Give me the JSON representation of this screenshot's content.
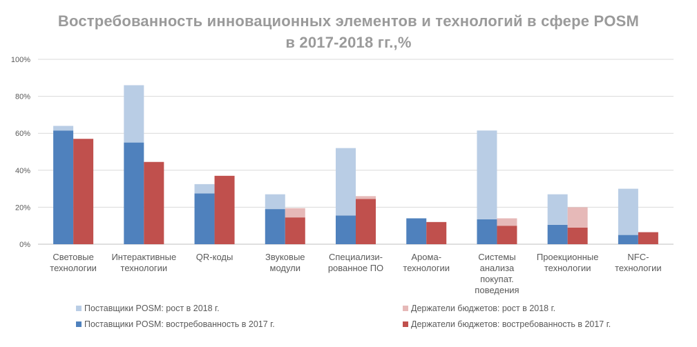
{
  "chart_data": {
    "type": "bar",
    "title_line1": "Востребованность инновационных элементов и технологий в сфере POSM",
    "title_line2": "в 2017-2018 гг.,%",
    "ylim": [
      0,
      100
    ],
    "yticks": [
      "0%",
      "20%",
      "40%",
      "60%",
      "80%",
      "100%"
    ],
    "ytick_values": [
      0,
      20,
      40,
      60,
      80,
      100
    ],
    "grid": true,
    "legend_position": "bottom",
    "categories": [
      [
        "Световые",
        "технологии"
      ],
      [
        "Интерактивные",
        "технологии"
      ],
      [
        "QR-коды"
      ],
      [
        "Звуковые",
        "модули"
      ],
      [
        "Специализи-",
        "рованное ПО"
      ],
      [
        "Арома-",
        "технологии"
      ],
      [
        "Системы",
        "анализа",
        "покупат.",
        "поведения"
      ],
      [
        "Проекционные",
        "технологии"
      ],
      [
        "NFC-",
        "технологии"
      ]
    ],
    "series": [
      {
        "name": "Поставщики POSM: востребованность в 2017 г.",
        "group": "suppliers",
        "part": "base",
        "color": "#4f81bd",
        "values": [
          61.5,
          55,
          27.5,
          19,
          15.5,
          14,
          13.5,
          10.5,
          5
        ]
      },
      {
        "name": "Поставщики POSM: рост в 2018 г.",
        "group": "suppliers",
        "part": "growth",
        "color": "#b9cde5",
        "values": [
          2.5,
          31,
          5,
          8,
          36.5,
          0,
          48,
          16.5,
          25
        ]
      },
      {
        "name": "Держатели бюджетов: востребованность в 2017 г.",
        "group": "budget",
        "part": "base",
        "color": "#c0504d",
        "values": [
          57,
          44.5,
          37,
          14.5,
          24.5,
          12,
          10,
          9,
          6.5
        ]
      },
      {
        "name": "Держатели бюджетов: рост в 2018 г.",
        "group": "budget",
        "part": "growth",
        "color": "#e6b9b8",
        "values": [
          0,
          0,
          0,
          5,
          1.5,
          0,
          4,
          11,
          0
        ]
      }
    ],
    "legend_order": [
      1,
      3,
      0,
      2
    ]
  }
}
